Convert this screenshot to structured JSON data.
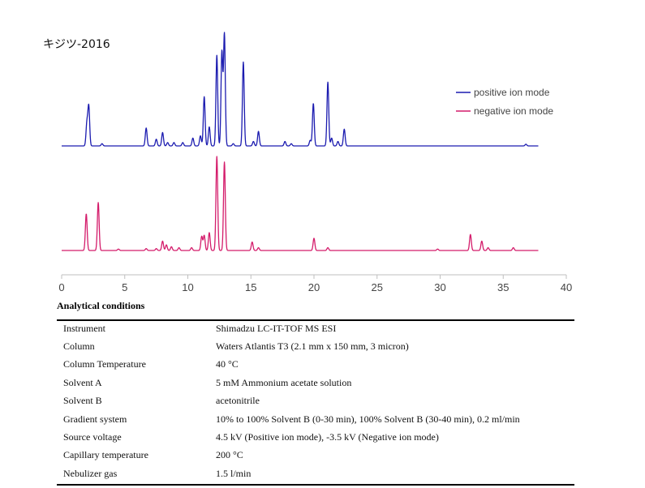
{
  "title": "キジツ-2016",
  "chart_data": {
    "type": "line",
    "xlim": [
      0,
      40
    ],
    "x_ticks": [
      "0",
      "5",
      "10",
      "15",
      "20",
      "25",
      "30",
      "35",
      "40"
    ],
    "legend_position": "right",
    "series": [
      {
        "name": "positive ion mode",
        "color": "#1c1cb0",
        "peaks": [
          {
            "t": 2.0,
            "h": 0.2
          },
          {
            "t": 2.15,
            "h": 0.35
          },
          {
            "t": 3.2,
            "h": 0.02
          },
          {
            "t": 6.7,
            "h": 0.16
          },
          {
            "t": 7.5,
            "h": 0.06
          },
          {
            "t": 8.0,
            "h": 0.12
          },
          {
            "t": 8.4,
            "h": 0.03
          },
          {
            "t": 8.9,
            "h": 0.03
          },
          {
            "t": 9.6,
            "h": 0.03
          },
          {
            "t": 10.4,
            "h": 0.07
          },
          {
            "t": 11.0,
            "h": 0.09
          },
          {
            "t": 11.3,
            "h": 0.44
          },
          {
            "t": 11.7,
            "h": 0.17
          },
          {
            "t": 12.3,
            "h": 0.81
          },
          {
            "t": 12.7,
            "h": 0.84
          },
          {
            "t": 12.9,
            "h": 1.0
          },
          {
            "t": 13.6,
            "h": 0.02
          },
          {
            "t": 14.4,
            "h": 0.75
          },
          {
            "t": 15.2,
            "h": 0.04
          },
          {
            "t": 15.6,
            "h": 0.13
          },
          {
            "t": 17.7,
            "h": 0.04
          },
          {
            "t": 18.2,
            "h": 0.02
          },
          {
            "t": 19.7,
            "h": 0.05
          },
          {
            "t": 19.95,
            "h": 0.38
          },
          {
            "t": 21.1,
            "h": 0.57
          },
          {
            "t": 21.4,
            "h": 0.07
          },
          {
            "t": 21.9,
            "h": 0.04
          },
          {
            "t": 22.4,
            "h": 0.15
          },
          {
            "t": 36.8,
            "h": 0.015
          }
        ]
      },
      {
        "name": "negative ion mode",
        "color": "#d41c6b",
        "peaks": [
          {
            "t": 1.95,
            "h": 0.39
          },
          {
            "t": 2.9,
            "h": 0.51
          },
          {
            "t": 4.5,
            "h": 0.015
          },
          {
            "t": 6.7,
            "h": 0.02
          },
          {
            "t": 7.5,
            "h": 0.02
          },
          {
            "t": 8.0,
            "h": 0.1
          },
          {
            "t": 8.3,
            "h": 0.06
          },
          {
            "t": 8.7,
            "h": 0.04
          },
          {
            "t": 9.3,
            "h": 0.03
          },
          {
            "t": 10.3,
            "h": 0.03
          },
          {
            "t": 11.1,
            "h": 0.15
          },
          {
            "t": 11.3,
            "h": 0.16
          },
          {
            "t": 11.7,
            "h": 0.19
          },
          {
            "t": 12.3,
            "h": 1.0
          },
          {
            "t": 12.9,
            "h": 0.94
          },
          {
            "t": 15.1,
            "h": 0.09
          },
          {
            "t": 15.6,
            "h": 0.03
          },
          {
            "t": 20.0,
            "h": 0.13
          },
          {
            "t": 21.1,
            "h": 0.03
          },
          {
            "t": 29.8,
            "h": 0.015
          },
          {
            "t": 32.4,
            "h": 0.17
          },
          {
            "t": 33.3,
            "h": 0.1
          },
          {
            "t": 33.8,
            "h": 0.03
          },
          {
            "t": 35.8,
            "h": 0.03
          }
        ]
      }
    ]
  },
  "conditions": {
    "heading": "Analytical conditions",
    "rows": [
      {
        "param": "Instrument",
        "value": "Shimadzu LC-IT-TOF MS ESI"
      },
      {
        "param": "Column",
        "value": "Waters Atlantis T3 (2.1 mm x 150 mm, 3 micron)"
      },
      {
        "param": "Column Temperature",
        "value": "40 °C"
      },
      {
        "param": "Solvent A",
        "value": "5 mM Ammonium acetate solution"
      },
      {
        "param": "Solvent B",
        "value": "acetonitrile"
      },
      {
        "param": "Gradient system",
        "value": "10% to 100% Solvent B (0-30 min), 100% Solvent B (30-40 min), 0.2 ml/min"
      },
      {
        "param": "Source voltage",
        "value": "4.5 kV (Positive ion mode), -3.5 kV (Negative ion mode)"
      },
      {
        "param": "Capillary temperature",
        "value": "200 °C"
      },
      {
        "param": "Nebulizer gas",
        "value": "1.5 l/min"
      }
    ]
  }
}
